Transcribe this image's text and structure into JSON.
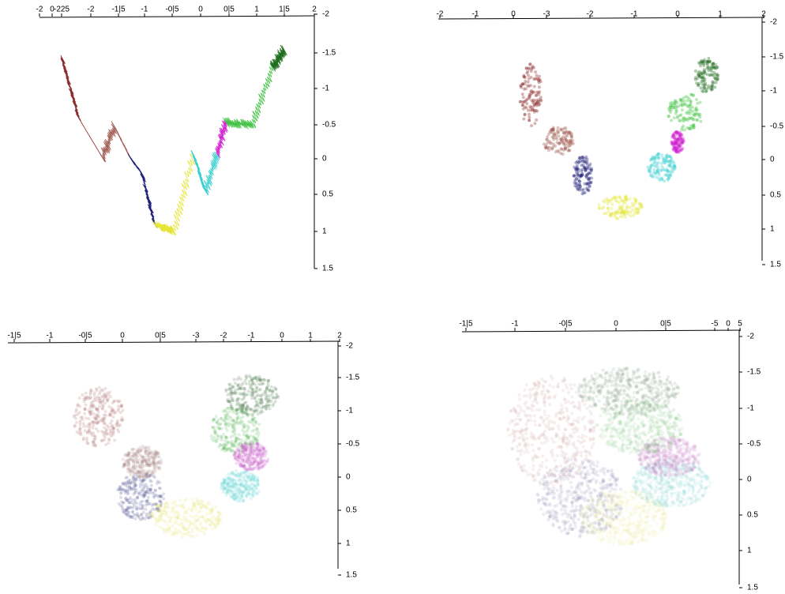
{
  "panels": [
    {
      "top_ticks": [
        "-2",
        "0",
        "-225",
        "-2",
        "-1|5",
        "-1",
        "-0|5",
        "0",
        "0|5",
        "1",
        "1|5",
        "2"
      ],
      "right_ticks": [
        "-2",
        "-1.5",
        "-1",
        "-0.5",
        "0",
        "0.5",
        "1",
        "1.5"
      ]
    },
    {
      "top_ticks": [
        "-2",
        "-1",
        "0",
        "-3",
        "-2",
        "-1",
        "0",
        "1",
        "2"
      ],
      "right_ticks": [
        "-2",
        "-1.5",
        "-1",
        "-0.5",
        "0",
        "0.5",
        "1",
        "1.5"
      ]
    },
    {
      "top_ticks": [
        "-1|5",
        "-1",
        "-0|5",
        "0",
        "0|5",
        "-3",
        "-2",
        "-1",
        "0",
        "1",
        "2"
      ],
      "right_ticks": [
        "-2",
        "-1.5",
        "-1",
        "-0.5",
        "0",
        "0.5",
        "1",
        "1.5"
      ]
    },
    {
      "top_ticks": [
        "-1|5",
        "-1",
        "-0|5",
        "0",
        "0|5",
        "-5",
        "0",
        "5"
      ],
      "right_ticks": [
        "-2",
        "-1.5",
        "-1",
        "-0.5",
        "0",
        "0.5",
        "1",
        "1.5"
      ]
    }
  ]
}
